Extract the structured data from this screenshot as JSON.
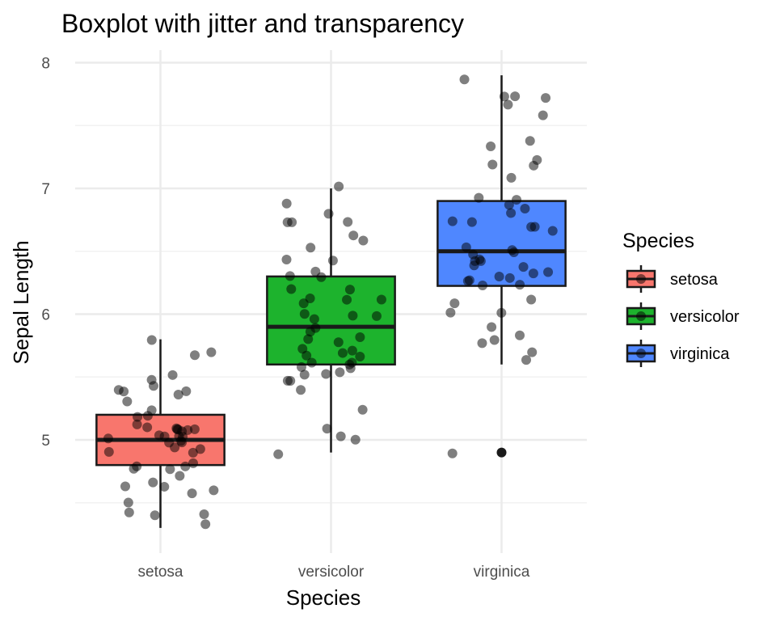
{
  "chart_data": {
    "type": "boxplot",
    "title": "Boxplot with jitter and transparency",
    "xlabel": "Species",
    "ylabel": "Sepal Length",
    "categories": [
      "setosa",
      "versicolor",
      "virginica"
    ],
    "ylim": [
      4.1,
      8.1
    ],
    "y_ticks": [
      5,
      6,
      7,
      8
    ],
    "y_tick_labels": [
      "5",
      "6",
      "7",
      "8"
    ],
    "grid": true,
    "legend": {
      "title": "Species",
      "position": "right",
      "entries": [
        "setosa",
        "versicolor",
        "virginica"
      ]
    },
    "colors": {
      "setosa": "#f8766d",
      "versicolor": "#1db32d",
      "virginica": "#4f87ff"
    },
    "boxes": [
      {
        "category": "setosa",
        "min": 4.3,
        "q1": 4.8,
        "median": 5.0,
        "q3": 5.2,
        "max": 5.8,
        "outliers": []
      },
      {
        "category": "versicolor",
        "min": 4.9,
        "q1": 5.6,
        "median": 5.9,
        "q3": 6.3,
        "max": 7.0,
        "outliers": []
      },
      {
        "category": "virginica",
        "min": 5.6,
        "q1": 6.225,
        "median": 6.5,
        "q3": 6.9,
        "max": 7.9,
        "outliers": [
          4.9
        ]
      }
    ],
    "points": [
      {
        "category": "setosa",
        "values": [
          5.1,
          4.9,
          4.7,
          4.6,
          5.0,
          5.4,
          4.6,
          5.0,
          4.4,
          4.9,
          5.4,
          4.8,
          4.8,
          4.3,
          5.8,
          5.7,
          5.4,
          5.1,
          5.7,
          5.1,
          5.4,
          5.1,
          4.6,
          5.1,
          4.8,
          5.0,
          5.0,
          5.2,
          5.2,
          4.7,
          4.8,
          5.4,
          5.2,
          5.5,
          4.9,
          5.0,
          5.5,
          4.9,
          4.4,
          5.1,
          5.0,
          4.5,
          4.4,
          5.0,
          5.1,
          4.8,
          5.1,
          4.6,
          5.3,
          5.0
        ]
      },
      {
        "category": "versicolor",
        "values": [
          7.0,
          6.4,
          6.9,
          5.5,
          6.5,
          5.7,
          6.3,
          4.9,
          6.6,
          5.2,
          5.0,
          5.9,
          6.0,
          6.1,
          5.6,
          6.7,
          5.6,
          5.8,
          6.2,
          5.6,
          5.9,
          6.1,
          6.3,
          6.1,
          6.4,
          6.6,
          6.8,
          6.7,
          6.0,
          5.7,
          5.5,
          5.5,
          5.8,
          6.0,
          5.4,
          6.0,
          6.7,
          6.3,
          5.6,
          5.5,
          5.5,
          6.1,
          5.8,
          5.0,
          5.6,
          5.7,
          5.7,
          6.2,
          5.1,
          5.7
        ]
      },
      {
        "category": "virginica",
        "values": [
          6.3,
          5.8,
          7.1,
          6.3,
          6.5,
          7.6,
          4.9,
          7.3,
          6.7,
          7.2,
          6.5,
          6.4,
          6.8,
          5.7,
          5.8,
          6.4,
          6.5,
          7.7,
          7.7,
          6.0,
          6.9,
          5.6,
          7.7,
          6.3,
          6.7,
          7.2,
          6.2,
          6.1,
          6.4,
          7.2,
          7.4,
          7.9,
          6.4,
          6.3,
          6.1,
          7.7,
          6.3,
          6.4,
          6.0,
          6.9,
          6.7,
          6.9,
          5.8,
          6.8,
          6.7,
          6.7,
          6.3,
          6.5,
          6.2,
          5.9
        ]
      }
    ]
  }
}
